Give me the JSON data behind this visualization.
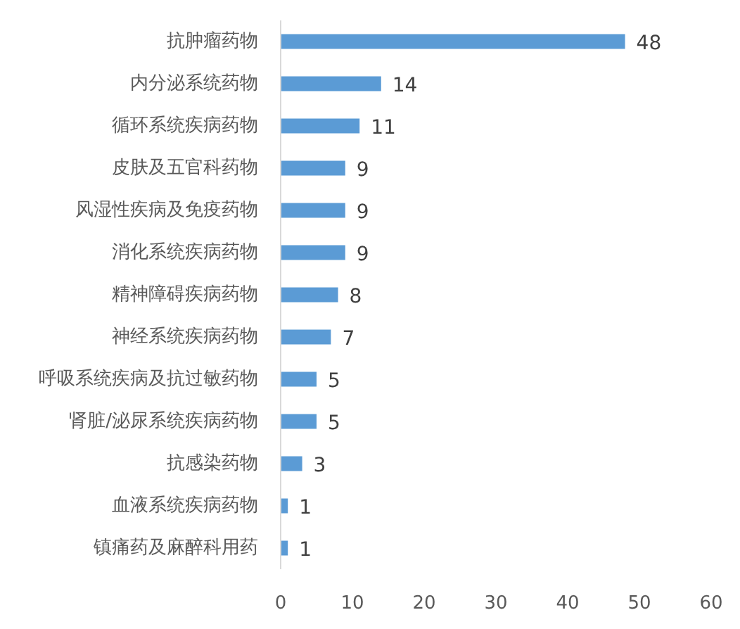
{
  "chart_data": {
    "type": "bar",
    "orientation": "horizontal",
    "categories": [
      "抗肿瘤药物",
      "内分泌系统药物",
      "循环系统疾病药物",
      "皮肤及五官科药物",
      "风湿性疾病及免疫药物",
      "消化系统疾病药物",
      "精神障碍疾病药物",
      "神经系统疾病药物",
      "呼吸系统疾病及抗过敏药物",
      "肾脏/泌尿系统疾病药物",
      "抗感染药物",
      "血液系统疾病药物",
      "镇痛药及麻醉科用药"
    ],
    "values": [
      48,
      14,
      11,
      9,
      9,
      9,
      8,
      7,
      5,
      5,
      3,
      1,
      1
    ],
    "color": "#5b9bd5",
    "xlim": [
      0,
      60
    ],
    "xticks": [
      0,
      10,
      20,
      30,
      40,
      50,
      60
    ],
    "grid": false,
    "data_labels": true
  }
}
